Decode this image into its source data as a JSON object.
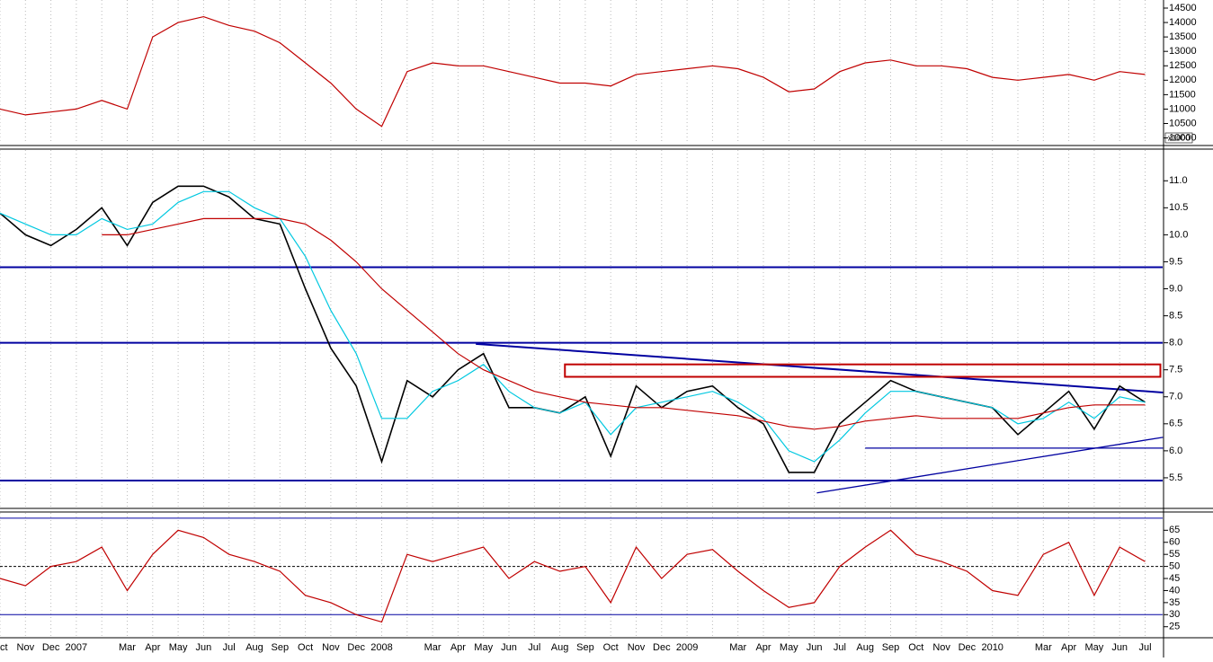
{
  "chart_data": [
    {
      "type": "line",
      "panel": "index",
      "ylim": [
        9800,
        14780
      ],
      "yticks": [
        10000,
        10500,
        11000,
        11500,
        12000,
        12500,
        13000,
        13500,
        14000,
        14500
      ],
      "scale_note": "x1000",
      "series": [
        {
          "name": null,
          "color": "#c00000",
          "values": [
            11000,
            10800,
            10900,
            11000,
            11300,
            11000,
            13500,
            14000,
            14200,
            13900,
            13700,
            13300,
            12600,
            11900,
            11000,
            10400,
            12300,
            12600,
            12500,
            12500,
            12300,
            12100,
            11900,
            11900,
            11800,
            12200,
            12300,
            12400,
            12500,
            12400,
            12100,
            11600,
            11700,
            12300,
            12600,
            12700,
            12500,
            12500,
            12400,
            12100,
            12000,
            12100,
            12200,
            12000,
            12300,
            12200
          ]
        }
      ]
    },
    {
      "type": "line",
      "panel": "price",
      "ylim": [
        4.95,
        11.57
      ],
      "yticks": [
        {
          "value": 5.5,
          "label": "5.5"
        },
        {
          "value": 6,
          "label": "6.0"
        },
        6.5,
        {
          "value": 7,
          "label": "7.0"
        },
        7.5,
        {
          "value": 8,
          "label": "8.0"
        },
        8.5,
        {
          "value": 9,
          "label": "9.0"
        },
        9.5,
        {
          "value": 10,
          "label": "10.0"
        },
        10.5,
        {
          "value": 11,
          "label": "11.0"
        }
      ],
      "series": [
        {
          "name": null,
          "color": "#000000",
          "values": [
            10.4,
            10.0,
            9.8,
            10.1,
            10.5,
            9.8,
            10.6,
            10.9,
            10.9,
            10.7,
            10.3,
            10.2,
            9.0,
            7.9,
            7.2,
            5.8,
            7.3,
            7.0,
            7.5,
            7.8,
            6.8,
            6.8,
            6.7,
            7.0,
            5.9,
            7.2,
            6.8,
            7.1,
            7.2,
            6.8,
            6.5,
            5.6,
            5.6,
            6.5,
            6.9,
            7.3,
            7.1,
            7.0,
            6.9,
            6.8,
            6.3,
            6.7,
            7.1,
            6.4,
            7.2,
            6.9
          ]
        },
        {
          "name": null,
          "color": "#00c8e0",
          "values": [
            10.4,
            10.2,
            10.0,
            10.0,
            10.3,
            10.1,
            10.2,
            10.6,
            10.8,
            10.8,
            10.5,
            10.3,
            9.6,
            8.6,
            7.8,
            6.6,
            6.6,
            7.1,
            7.3,
            7.6,
            7.1,
            6.8,
            6.7,
            6.9,
            6.3,
            6.8,
            6.9,
            7.0,
            7.1,
            6.9,
            6.6,
            6.0,
            5.8,
            6.2,
            6.7,
            7.1,
            7.1,
            7.0,
            6.9,
            6.8,
            6.5,
            6.6,
            6.9,
            6.6,
            7.0,
            6.9
          ]
        },
        {
          "name": null,
          "color": "#c00000",
          "values": [
            null,
            null,
            null,
            null,
            10.0,
            10.0,
            10.1,
            10.2,
            10.3,
            10.3,
            10.3,
            10.3,
            10.2,
            9.9,
            9.5,
            9.0,
            8.6,
            8.2,
            7.8,
            7.5,
            7.3,
            7.1,
            7.0,
            6.9,
            6.85,
            6.8,
            6.8,
            6.75,
            6.7,
            6.65,
            6.55,
            6.45,
            6.4,
            6.45,
            6.55,
            6.6,
            6.65,
            6.6,
            6.6,
            6.6,
            6.6,
            6.7,
            6.8,
            6.85,
            6.85,
            6.85
          ]
        }
      ],
      "hlines": [
        9.4,
        8.0,
        5.45
      ],
      "segments": [
        {
          "from": [
            34,
            6.05
          ],
          "to": [
            45.7,
            6.05
          ]
        },
        {
          "from": [
            18.7,
            7.98
          ],
          "to": [
            45.7,
            7.08
          ]
        },
        {
          "from": [
            32.1,
            5.22
          ],
          "to": [
            45.7,
            6.25
          ]
        }
      ],
      "box": {
        "from": [
          22.2,
          7.6
        ],
        "to": [
          45.6,
          7.37
        ]
      }
    },
    {
      "type": "line",
      "panel": "rsi",
      "ylim": [
        20.8,
        72.2
      ],
      "yticks": [
        25,
        30,
        35,
        40,
        45,
        50,
        55,
        60,
        65
      ],
      "hlines": [
        70,
        30
      ],
      "midline": 50,
      "categories": [
        "Oct",
        "Nov",
        "Dec",
        "2007",
        null,
        "Mar",
        "Apr",
        "May",
        "Jun",
        "Jul",
        "Aug",
        "Sep",
        "Oct",
        "Nov",
        "Dec",
        "2008",
        null,
        "Mar",
        "Apr",
        "May",
        "Jun",
        "Jul",
        "Aug",
        "Sep",
        "Oct",
        "Nov",
        "Dec",
        "2009",
        null,
        "Mar",
        "Apr",
        "May",
        "Jun",
        "Jul",
        "Aug",
        "Sep",
        "Oct",
        "Nov",
        "Dec",
        "2010",
        null,
        "Mar",
        "Apr",
        "May",
        "Jun",
        "Jul"
      ],
      "series": [
        {
          "name": null,
          "color": "#c00000",
          "values": [
            45,
            42,
            50,
            52,
            58,
            40,
            55,
            65,
            62,
            55,
            52,
            48,
            38,
            35,
            30,
            27,
            55,
            52,
            55,
            58,
            45,
            52,
            48,
            50,
            35,
            58,
            45,
            55,
            57,
            48,
            40,
            33,
            35,
            50,
            58,
            65,
            55,
            52,
            48,
            40,
            38,
            55,
            60,
            38,
            58,
            52
          ]
        }
      ]
    }
  ]
}
